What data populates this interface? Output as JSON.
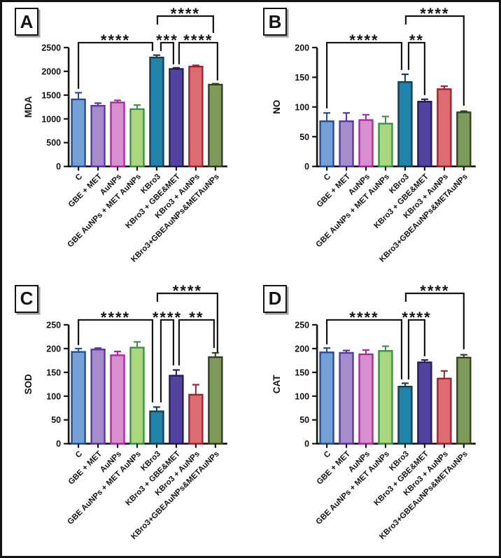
{
  "figure": {
    "background": "#ffffff",
    "border_color": "#141414",
    "panel_labels": [
      "A",
      "B",
      "C",
      "D"
    ]
  },
  "palette": {
    "bar_fills": [
      "#74A0D6",
      "#A78CCB",
      "#D88FD0",
      "#A9D67F",
      "#2182AC",
      "#5343A0",
      "#DC6B72",
      "#7E9A5B"
    ],
    "bar_edges": [
      "#2A4B8F",
      "#5638A0",
      "#AB2AA2",
      "#3D9144",
      "#16404E",
      "#261D55",
      "#9C2430",
      "#33421F"
    ],
    "axis_color": "#141414"
  },
  "chart_data": [
    {
      "type": "bar",
      "panel_label": "A",
      "ylabel": "MDA",
      "xlabel": "",
      "grid": false,
      "categories": [
        "C",
        "GBE + MET",
        "AuNPs",
        "GBE AuNPs + MET AuNPs",
        "KBro3",
        "KBro3 + GBE&MET",
        "KBro3 + AuNPs",
        "KBro3+GBEAuNPs&METAuNPs"
      ],
      "values": [
        1410,
        1275,
        1345,
        1205,
        2290,
        2050,
        2100,
        1720
      ],
      "errors": [
        140,
        55,
        45,
        85,
        50,
        25,
        25,
        20
      ],
      "ylim": [
        0,
        2500
      ],
      "yticks": [
        0,
        500,
        1000,
        1500,
        2000,
        2500
      ],
      "significance": [
        {
          "group1": "C",
          "group2": "KBro3",
          "stars": "****",
          "i1": 0,
          "i2": 4,
          "y": 58,
          "o1": 0,
          "o2": -6,
          "e1": 124,
          "e2": 70
        },
        {
          "group1": "KBro3",
          "group2": "KBro3 + GBE&MET",
          "stars": "***",
          "i1": 4,
          "i2": 5,
          "y": 58,
          "o1": 6,
          "o2": -4,
          "e1": 70,
          "e2": 89
        },
        {
          "group1": "KBro3 + GBE&MET",
          "group2": "KBro3+GBEAuNPs&METAuNPs",
          "stars": "****",
          "i1": 5,
          "i2": 7,
          "y": 58,
          "o1": 4,
          "o2": 3,
          "e1": 89,
          "e2": 112
        },
        {
          "group1": "KBro3",
          "group2": "KBro3+GBEAuNPs&METAuNPs",
          "stars": "****",
          "i1": 4,
          "i2": 7,
          "y": 20,
          "o1": 1,
          "o2": -3,
          "e1": 32,
          "e2": 44
        }
      ]
    },
    {
      "type": "bar",
      "panel_label": "B",
      "ylabel": "NO",
      "xlabel": "",
      "grid": false,
      "categories": [
        "C",
        "GBE + MET",
        "AuNPs",
        "GBE AuNPs + MET AuNPs",
        "KBro3",
        "KBro3 + GBE&MET",
        "KBro3 + AuNPs",
        "KBro3+GBEAuNPs&METAuNPs"
      ],
      "values": [
        76,
        76,
        78,
        72,
        142,
        109,
        130,
        91
      ],
      "errors": [
        14,
        14,
        9,
        12,
        13,
        4,
        5,
        2
      ],
      "ylim": [
        0,
        200
      ],
      "yticks": [
        0,
        50,
        100,
        150,
        200
      ],
      "significance": [
        {
          "group1": "C",
          "group2": "KBro3",
          "stars": "****",
          "i1": 0,
          "i2": 4,
          "y": 58,
          "o1": 0,
          "o2": -5,
          "e1": 152,
          "e2": 97
        },
        {
          "group1": "KBro3",
          "group2": "KBro3 + GBE&MET",
          "stars": "**",
          "i1": 4,
          "i2": 5,
          "y": 58,
          "o1": 5,
          "o2": 0,
          "e1": 97,
          "e2": 133
        },
        {
          "group1": "KBro3",
          "group2": "KBro3+GBEAuNPs&METAuNPs",
          "stars": "****",
          "i1": 4,
          "i2": 7,
          "y": 20,
          "o1": 1,
          "o2": 0,
          "e1": 32,
          "e2": 148
        }
      ]
    },
    {
      "type": "bar",
      "panel_label": "C",
      "ylabel": "SOD",
      "xlabel": "",
      "grid": false,
      "categories": [
        "C",
        "GBE + MET",
        "AuNPs",
        "GBE AuNPs + MET AuNPs",
        "KBro3",
        "KBro3 + GBE&MET",
        "KBro3 + AuNPs",
        "KBro3+GBEAuNPs&METAuNPs"
      ],
      "values": [
        193,
        198,
        186,
        202,
        68,
        143,
        103,
        182
      ],
      "errors": [
        7,
        3,
        8,
        12,
        9,
        12,
        21,
        9
      ],
      "ylim": [
        0,
        250
      ],
      "yticks": [
        0,
        50,
        100,
        150,
        200,
        250
      ],
      "significance": [
        {
          "group1": "C",
          "group2": "KBro3",
          "stars": "****",
          "i1": 0,
          "i2": 4,
          "y": 58,
          "o1": 0,
          "o2": -6,
          "e1": 94,
          "e2": 176
        },
        {
          "group1": "KBro3",
          "group2": "KBro3 + GBE&MET",
          "stars": "****",
          "i1": 4,
          "i2": 5,
          "y": 58,
          "o1": 6,
          "o2": -4,
          "e1": 176,
          "e2": 123
        },
        {
          "group1": "KBro3 + GBE&MET",
          "group2": "KBro3+GBEAuNPs&METAuNPs",
          "stars": "**",
          "i1": 5,
          "i2": 7,
          "y": 58,
          "o1": 4,
          "o2": -2,
          "e1": 123,
          "e2": 98
        },
        {
          "group1": "KBro3",
          "group2": "KBro3+GBEAuNPs&METAuNPs",
          "stars": "****",
          "i1": 4,
          "i2": 7,
          "y": 20,
          "o1": 1,
          "o2": 3,
          "e1": 32,
          "e2": 106
        }
      ]
    },
    {
      "type": "bar",
      "panel_label": "D",
      "ylabel": "CAT",
      "xlabel": "",
      "grid": false,
      "categories": [
        "C",
        "GBE + MET",
        "AuNPs",
        "GBE AuNPs + MET AuNPs",
        "KBro3",
        "KBro3 + GBE&MET",
        "KBro3 + AuNPs",
        "KBro3+GBEAuNPs&METAuNPs"
      ],
      "values": [
        192,
        191,
        188,
        195,
        120,
        171,
        137,
        181
      ],
      "errors": [
        9,
        5,
        9,
        10,
        7,
        5,
        16,
        6
      ],
      "ylim": [
        0,
        250
      ],
      "yticks": [
        0,
        50,
        100,
        150,
        200,
        250
      ],
      "significance": [
        {
          "group1": "C",
          "group2": "KBro3",
          "stars": "****",
          "i1": 0,
          "i2": 4,
          "y": 58,
          "o1": 0,
          "o2": -5,
          "e1": 93,
          "e2": 143
        },
        {
          "group1": "KBro3",
          "group2": "KBro3 + GBE&MET",
          "stars": "****",
          "i1": 4,
          "i2": 5,
          "y": 58,
          "o1": 5,
          "o2": 0,
          "e1": 143,
          "e2": 110
        },
        {
          "group1": "KBro3",
          "group2": "KBro3+GBEAuNPs&METAuNPs",
          "stars": "****",
          "i1": 4,
          "i2": 7,
          "y": 20,
          "o1": 1,
          "o2": 0,
          "e1": 32,
          "e2": 100
        }
      ]
    }
  ]
}
